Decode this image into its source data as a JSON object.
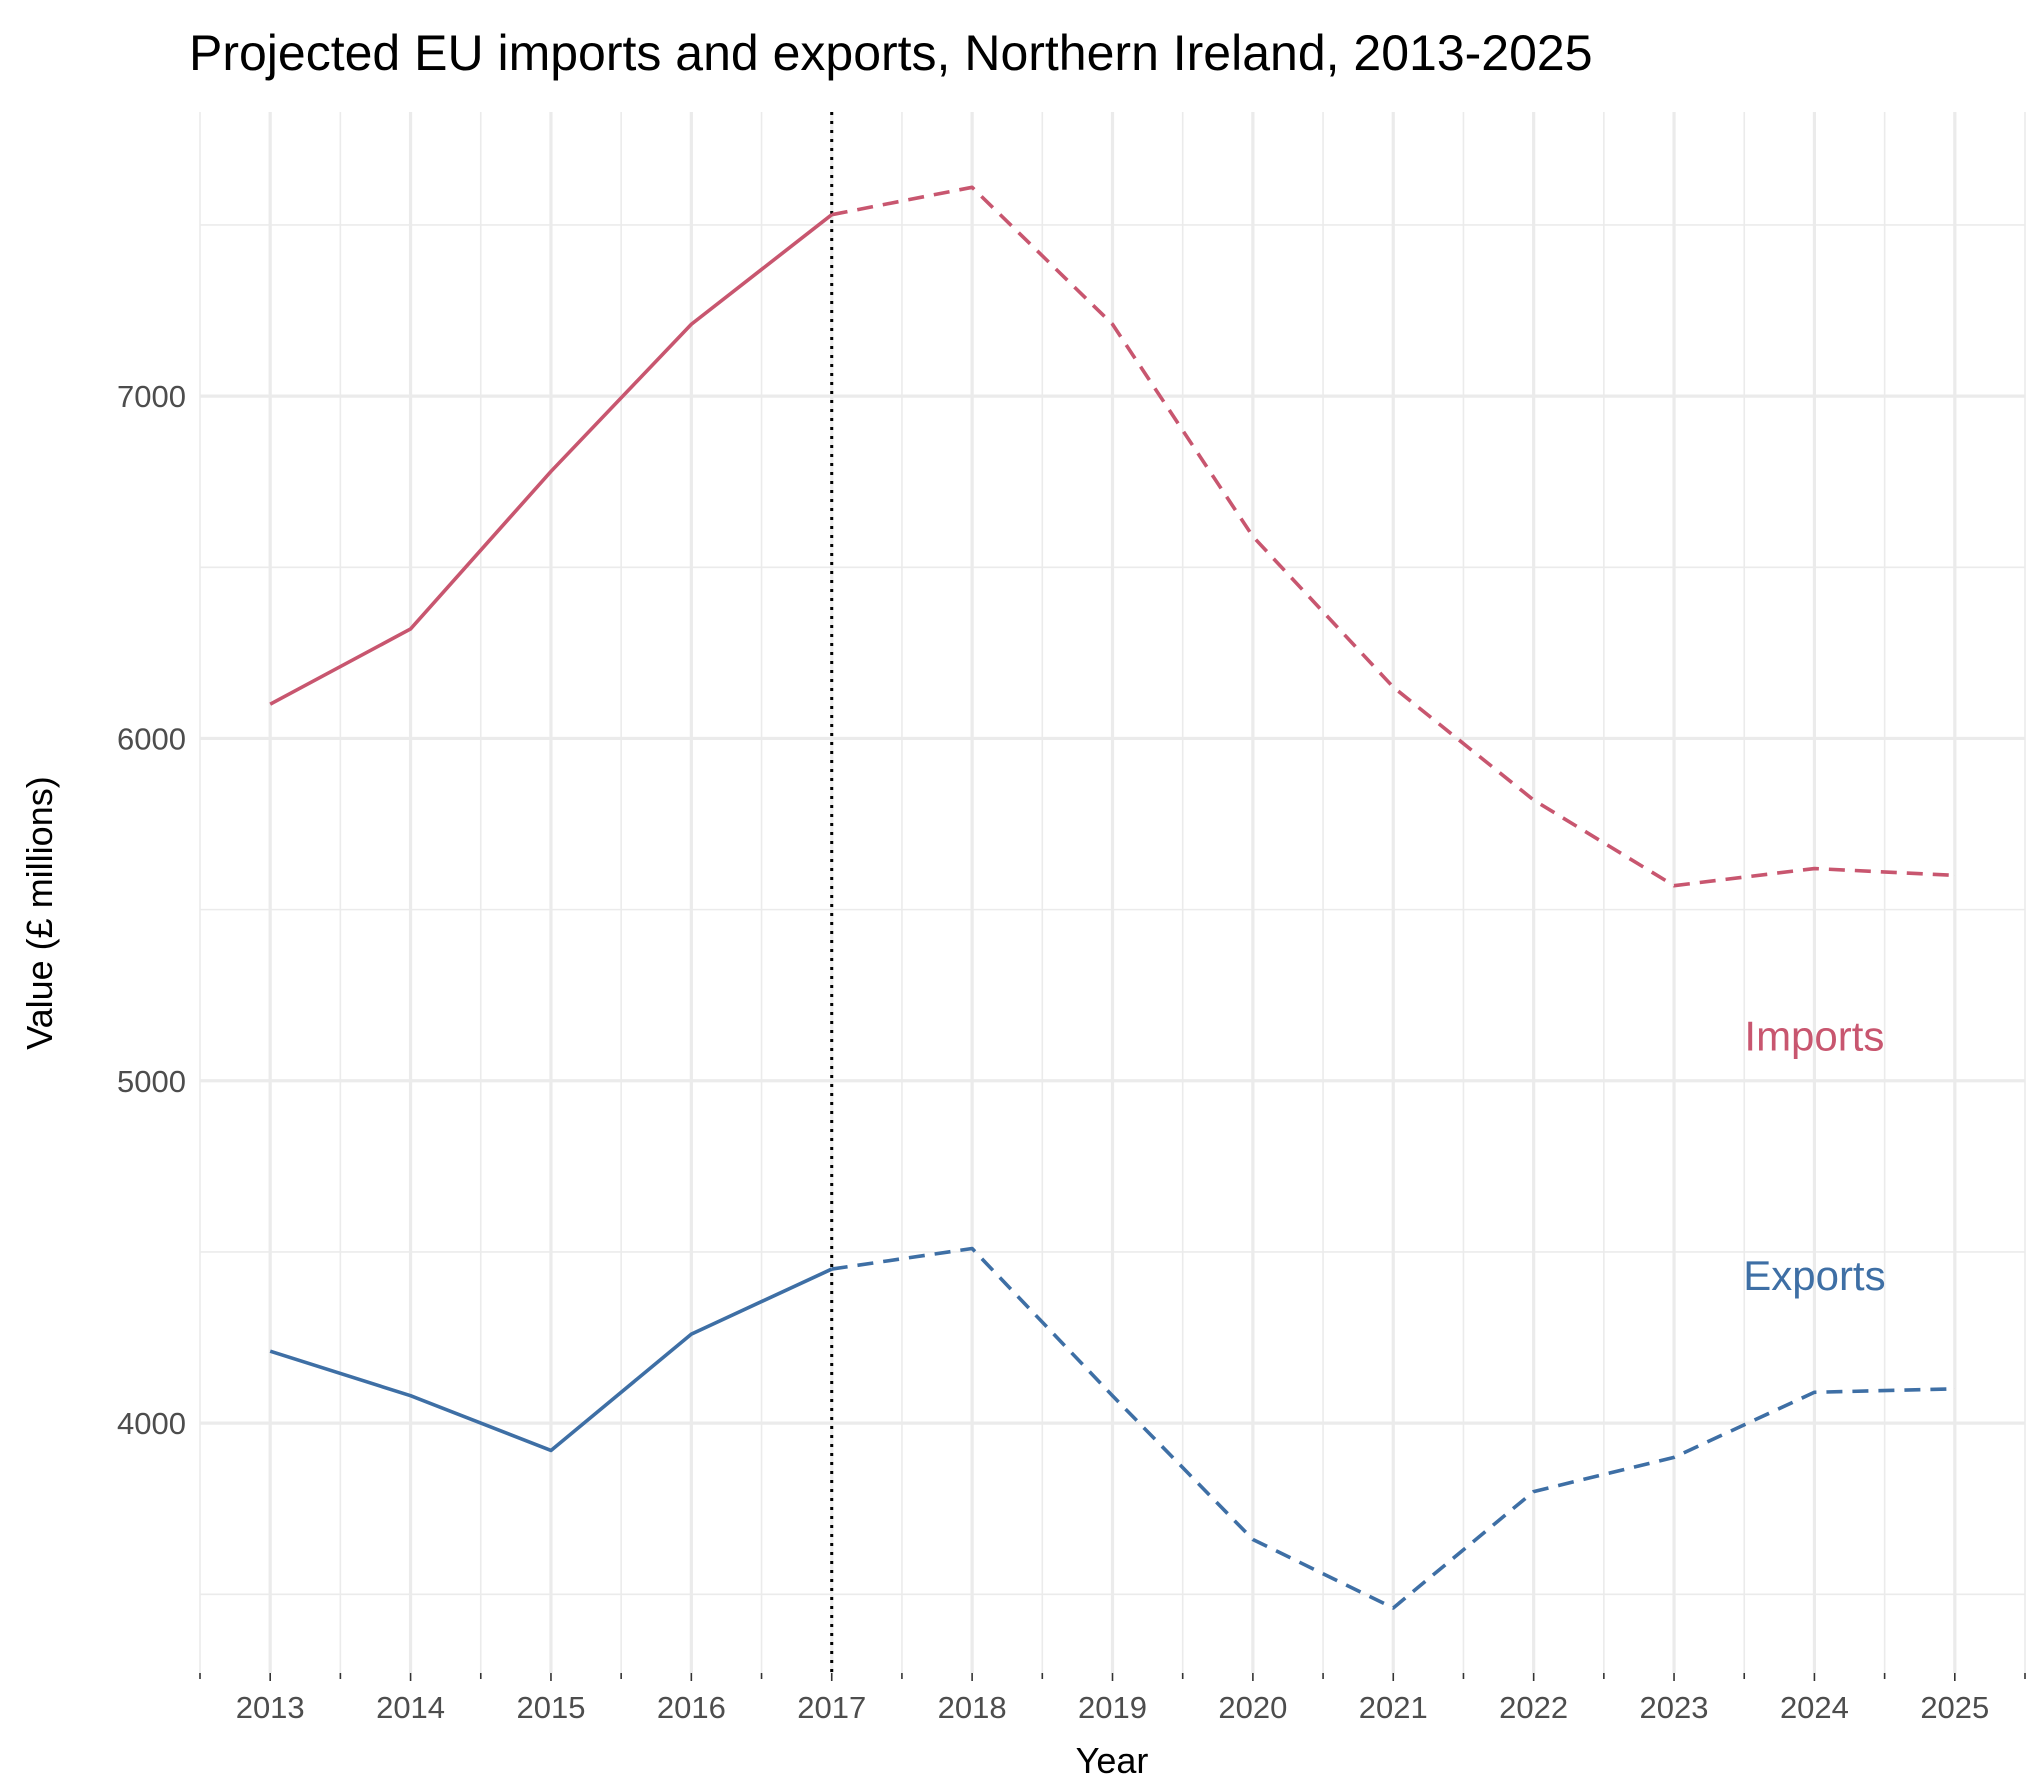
{
  "chart_data": {
    "type": "line",
    "title": "Projected EU imports and exports, Northern Ireland, 2013-2025",
    "xlabel": "Year",
    "ylabel": "Value (£ millions)",
    "x": [
      2013,
      2014,
      2015,
      2016,
      2017,
      2018,
      2019,
      2020,
      2021,
      2022,
      2023,
      2024,
      2025
    ],
    "xlim": [
      2012.5,
      2025.5
    ],
    "ylim": [
      3270,
      7830
    ],
    "yticks": [
      4000,
      5000,
      6000,
      7000
    ],
    "reference_line": {
      "x": 2017,
      "style": "dotted",
      "color": "#000000"
    },
    "projection_start": 2017,
    "grid": true,
    "legend": "none",
    "series": [
      {
        "name": "Imports",
        "color": "#c8566f",
        "values": [
          6100,
          6320,
          6780,
          7210,
          7530,
          7610,
          7210,
          6590,
          6150,
          5820,
          5570,
          5620,
          5600
        ]
      },
      {
        "name": "Exports",
        "color": "#3e6fa5",
        "values": [
          4210,
          4080,
          3920,
          4260,
          4450,
          4510,
          4080,
          3660,
          3460,
          3800,
          3900,
          4090,
          4100
        ]
      }
    ]
  }
}
